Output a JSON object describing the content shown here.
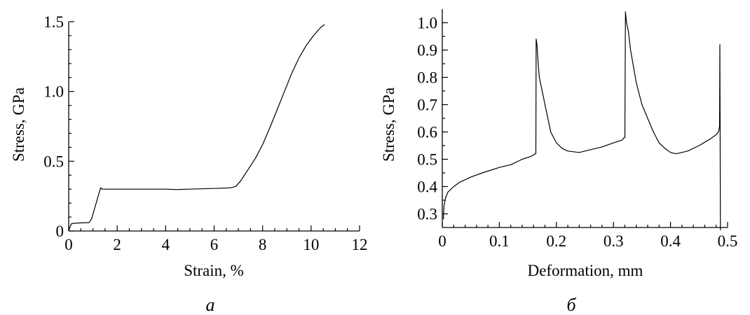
{
  "chart_data": [
    {
      "type": "line",
      "panel_label": "a",
      "xlabel": "Strain, %",
      "ylabel": "Stress, GPa",
      "xlim": [
        0,
        12
      ],
      "ylim": [
        0,
        1.5
      ],
      "x_ticks": [
        "0",
        "2",
        "4",
        "6",
        "8",
        "10",
        "12"
      ],
      "y_ticks": [
        "0",
        "0.5",
        "1.0",
        "1.5"
      ],
      "grid": false,
      "series": [
        {
          "x": [
            0,
            0.1,
            0.2,
            0.5,
            0.85,
            0.95,
            1.05,
            1.15,
            1.25,
            1.32,
            1.38,
            1.45,
            1.6,
            2,
            3,
            4,
            4.5,
            5,
            6,
            6.5,
            6.7,
            6.9,
            7.1,
            7.4,
            7.7,
            8.0,
            8.3,
            8.6,
            8.9,
            9.2,
            9.5,
            9.8,
            10.1,
            10.4,
            10.55
          ],
          "y": [
            0,
            0.05,
            0.055,
            0.058,
            0.06,
            0.09,
            0.15,
            0.21,
            0.27,
            0.31,
            0.3,
            0.3,
            0.3,
            0.3,
            0.3,
            0.3,
            0.297,
            0.3,
            0.305,
            0.308,
            0.31,
            0.32,
            0.36,
            0.44,
            0.52,
            0.62,
            0.74,
            0.87,
            1.0,
            1.13,
            1.24,
            1.33,
            1.4,
            1.46,
            1.48
          ]
        }
      ]
    },
    {
      "type": "line",
      "panel_label": "б",
      "xlabel": "Deformation, mm",
      "ylabel": "Stress, GPa",
      "xlim": [
        0,
        0.5
      ],
      "ylim": [
        0.25,
        1.05
      ],
      "x_ticks": [
        "0",
        "0.1",
        "0.2",
        "0.3",
        "0.4",
        "0.5"
      ],
      "y_ticks": [
        "0.3",
        "0.4",
        "0.5",
        "0.6",
        "0.7",
        "0.8",
        "0.9",
        "1.0"
      ],
      "grid": false,
      "series": [
        {
          "x": [
            0.002,
            0.003,
            0.006,
            0.01,
            0.02,
            0.03,
            0.05,
            0.07,
            0.1,
            0.12,
            0.14,
            0.155,
            0.163,
            0.164,
            0.1645,
            0.166,
            0.168,
            0.17,
            0.175,
            0.18,
            0.185,
            0.19,
            0.2,
            0.21,
            0.22,
            0.24,
            0.26,
            0.28,
            0.3,
            0.315,
            0.319,
            0.32,
            0.321,
            0.323,
            0.326,
            0.33,
            0.335,
            0.34,
            0.345,
            0.35,
            0.36,
            0.37,
            0.38,
            0.39,
            0.4,
            0.41,
            0.43,
            0.45,
            0.47,
            0.48,
            0.484,
            0.486,
            0.4865,
            0.487,
            0.4872,
            0.4875
          ],
          "y": [
            0.28,
            0.33,
            0.36,
            0.38,
            0.4,
            0.415,
            0.435,
            0.45,
            0.47,
            0.48,
            0.5,
            0.51,
            0.52,
            0.52,
            0.94,
            0.92,
            0.85,
            0.8,
            0.75,
            0.7,
            0.65,
            0.6,
            0.56,
            0.54,
            0.53,
            0.525,
            0.535,
            0.545,
            0.56,
            0.57,
            0.58,
            0.58,
            1.04,
            1.0,
            0.97,
            0.9,
            0.84,
            0.78,
            0.74,
            0.7,
            0.65,
            0.6,
            0.56,
            0.54,
            0.525,
            0.52,
            0.53,
            0.55,
            0.575,
            0.59,
            0.6,
            0.62,
            0.92,
            0.6,
            0.4,
            0.24
          ]
        }
      ]
    }
  ]
}
